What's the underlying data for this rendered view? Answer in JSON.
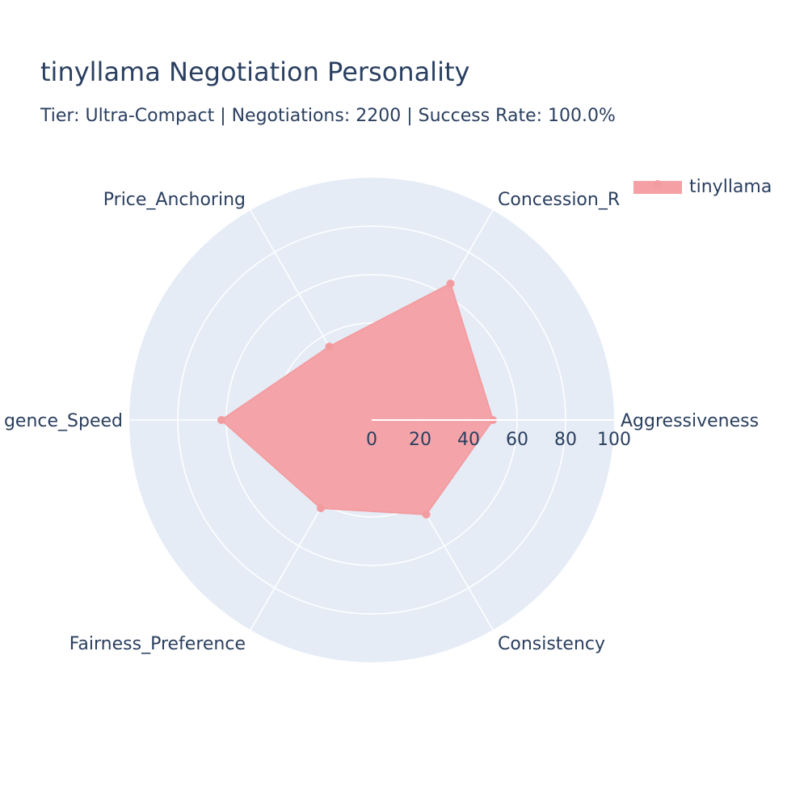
{
  "chart_data": {
    "type": "radar",
    "title": "tinyllama Negotiation Personality",
    "subtitle": "Tier: Ultra-Compact | Negotiations: 2200 | Success Rate: 100.0%",
    "categories": [
      "Aggressiveness",
      "Concession_Rate",
      "Price_Anchoring",
      "Convergence_Speed",
      "Fairness_Preference",
      "Consistency"
    ],
    "category_labels_shown": [
      "Aggressiveness",
      "Concession_R",
      "Price_Anchoring",
      "gence_Speed",
      "Fairness_Preference",
      "Consistency"
    ],
    "radial_range": [
      0,
      100
    ],
    "radial_ticks": [
      "0",
      "20",
      "40",
      "60",
      "80",
      "100"
    ],
    "series": [
      {
        "name": "tinyllama",
        "values": [
          50,
          65,
          35,
          62,
          42,
          45
        ],
        "color": "#F4A0A4"
      }
    ],
    "legend_position": "top-right",
    "grid": true
  },
  "colors": {
    "title": "#2a3f5f",
    "polar_bg": "#E5ECF6",
    "grid": "#ffffff",
    "trace_fill": "#F4A0A4",
    "trace_line": "#F39CA0"
  }
}
